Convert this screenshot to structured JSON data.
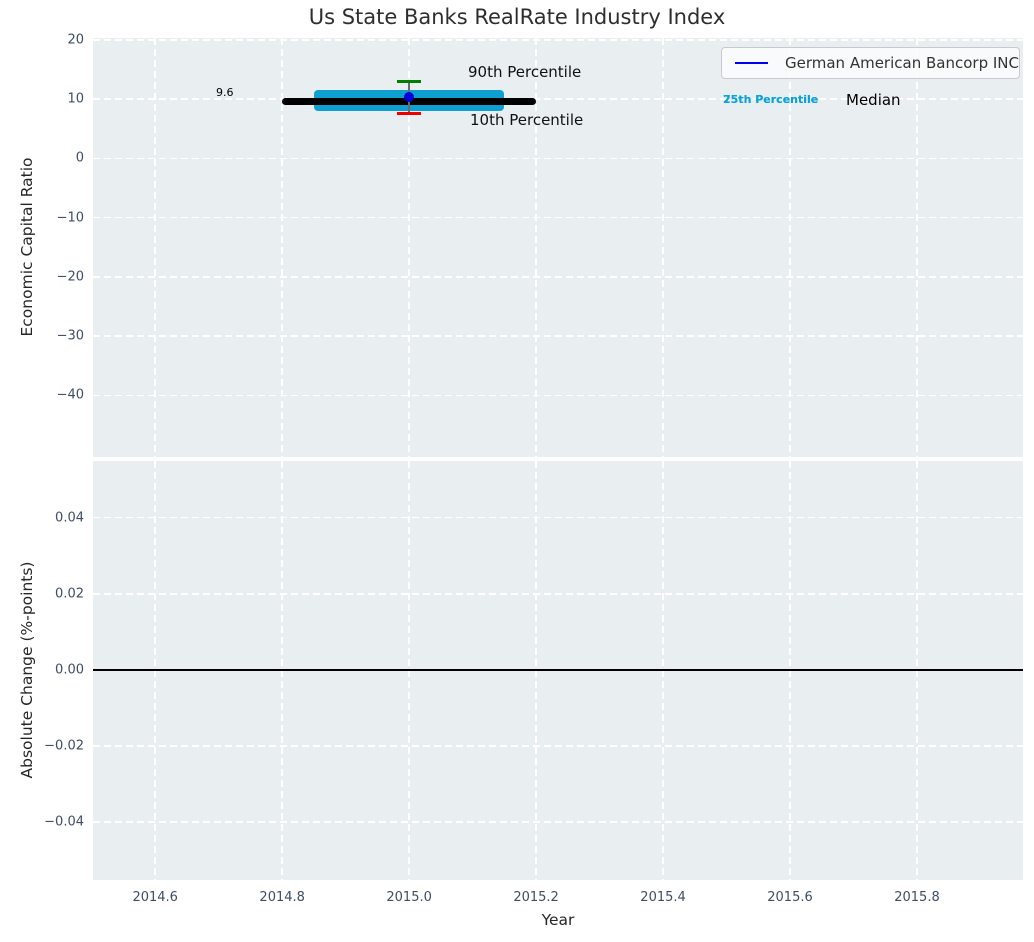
{
  "title": "Us State Banks RealRate Industry Index",
  "legend": {
    "series_label": "German American Bancorp INC",
    "line_color": "#0000f0"
  },
  "axis_labels": {
    "top_y": "Economic Capital Ratio",
    "bottom_y": "Absolute Change (%-points)",
    "x": "Year"
  },
  "annotations": {
    "p90": "90th Percentile",
    "p10": "10th Percentile",
    "p75": "75th Percentile",
    "p25": "25th Percentile",
    "median": "Median",
    "median_value": "9.6"
  },
  "colors": {
    "axes_background": "#e9eef1",
    "grid": "#ffffff",
    "tick_label": "#3e4d66",
    "title": "#2e2e2e",
    "company_point": "#0000d8",
    "median_line": "#000000",
    "iqr_band": "#0fa0d2",
    "p90_cap": "#007f00",
    "p10_cap": "#f20000",
    "percentile_label": "#0aa2d8",
    "zero_line": "#000000"
  },
  "chart_data": [
    {
      "type": "scatter",
      "title": "Us State Banks RealRate Industry Index",
      "xlabel": "",
      "ylabel": "Economic Capital Ratio",
      "xlim": [
        2014.502,
        2015.967
      ],
      "ylim": [
        -50.4,
        20.3
      ],
      "xticks": [
        2014.6,
        2014.8,
        2015.0,
        2015.2,
        2015.4,
        2015.6,
        2015.8
      ],
      "xticklabels": [
        "2014.6",
        "2014.8",
        "2015.0",
        "2015.2",
        "2015.4",
        "2015.6",
        "2015.8"
      ],
      "yticks": [
        20,
        10,
        0,
        -10,
        -20,
        -30,
        -40
      ],
      "yticklabels": [
        "20",
        "10",
        "0",
        "−10",
        "−20",
        "−30",
        "−40"
      ],
      "grid": true,
      "legend_position": "upper right",
      "series": [
        {
          "name": "German American Bancorp INC",
          "style": "point",
          "x": [
            2015.0
          ],
          "y": [
            10.3
          ]
        },
        {
          "name": "Median",
          "style": "thick_line",
          "x": [
            2014.8,
            2015.2
          ],
          "y": [
            9.6,
            9.6
          ],
          "label_value": 9.6
        },
        {
          "name": "75th Percentile",
          "style": "band_edge",
          "x": [
            2014.85,
            2015.15
          ],
          "y": [
            10.8,
            10.8
          ]
        },
        {
          "name": "25th Percentile",
          "style": "band_edge",
          "x": [
            2014.85,
            2015.15
          ],
          "y": [
            8.6,
            8.6
          ]
        },
        {
          "name": "90th Percentile",
          "style": "errorbar_cap",
          "x": [
            2015.0
          ],
          "y": [
            12.9
          ]
        },
        {
          "name": "10th Percentile",
          "style": "errorbar_cap",
          "x": [
            2015.0
          ],
          "y": [
            7.5
          ]
        }
      ]
    },
    {
      "type": "line",
      "title": "",
      "xlabel": "Year",
      "ylabel": "Absolute Change (%-points)",
      "xlim": [
        2014.502,
        2015.967
      ],
      "ylim": [
        -0.0552,
        0.0549
      ],
      "xticks": [
        2014.6,
        2014.8,
        2015.0,
        2015.2,
        2015.4,
        2015.6,
        2015.8
      ],
      "xticklabels": [
        "2014.6",
        "2014.8",
        "2015.0",
        "2015.2",
        "2015.4",
        "2015.6",
        "2015.8"
      ],
      "yticks": [
        0.04,
        0.02,
        0,
        -0.02,
        -0.04
      ],
      "yticklabels": [
        "0.04",
        "0.02",
        "0.00",
        "−0.02",
        "−0.04"
      ],
      "grid": true,
      "series": [],
      "reference_line": {
        "y": 0
      }
    }
  ]
}
